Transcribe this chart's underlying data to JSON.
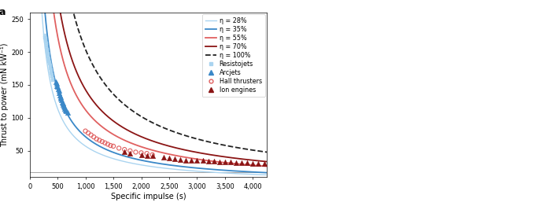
{
  "xlabel": "Specific impulse (s)",
  "ylabel": "Thrust to power (mN kW⁻¹)",
  "xlim": [
    0,
    4250
  ],
  "ylim": [
    10,
    260
  ],
  "curves": [
    {
      "eta": 0.28,
      "label": "η = 28%",
      "color": "#aad4f0",
      "linestyle": "solid",
      "linewidth": 1.0
    },
    {
      "eta": 0.35,
      "label": "η = 35%",
      "color": "#3a88c8",
      "linestyle": "solid",
      "linewidth": 1.3
    },
    {
      "eta": 0.55,
      "label": "η = 55%",
      "color": "#e06060",
      "linestyle": "solid",
      "linewidth": 1.3
    },
    {
      "eta": 0.7,
      "label": "η = 70%",
      "color": "#8b1515",
      "linestyle": "solid",
      "linewidth": 1.3
    },
    {
      "eta": 1.0,
      "label": "η = 100%",
      "color": "#222222",
      "linestyle": "dashed",
      "linewidth": 1.3
    }
  ],
  "resistojets": {
    "isp": [
      270,
      275,
      280,
      285,
      290,
      295,
      300,
      305,
      310,
      315,
      320,
      325,
      330,
      335,
      340,
      345,
      350,
      355,
      360,
      365,
      370,
      375,
      380,
      385,
      390,
      395,
      400,
      410,
      420
    ],
    "tp": [
      225,
      222,
      220,
      218,
      215,
      213,
      210,
      207,
      204,
      202,
      200,
      198,
      196,
      193,
      190,
      188,
      186,
      184,
      182,
      180,
      177,
      175,
      172,
      170,
      168,
      165,
      163,
      160,
      157
    ],
    "color": "#aad4f0",
    "marker": "s",
    "label": "Resistojets",
    "size": 12,
    "filled": true
  },
  "arcjets": {
    "isp": [
      470,
      480,
      490,
      500,
      510,
      520,
      530,
      540,
      550,
      560,
      570,
      580,
      590,
      600,
      610,
      620,
      630,
      640,
      660,
      680
    ],
    "tp": [
      155,
      152,
      149,
      147,
      144,
      141,
      138,
      135,
      132,
      130,
      127,
      124,
      122,
      120,
      118,
      116,
      114,
      112,
      110,
      108
    ],
    "color": "#3a88c8",
    "marker": "^",
    "label": "Arcjets",
    "size": 22,
    "filled": true
  },
  "hall_thrusters": {
    "isp": [
      1000,
      1050,
      1100,
      1150,
      1200,
      1250,
      1300,
      1350,
      1400,
      1450,
      1500,
      1600,
      1700,
      1800,
      1900,
      2000,
      2100,
      2200
    ],
    "tp": [
      80,
      77,
      74,
      71,
      68,
      66,
      64,
      62,
      60,
      58,
      57,
      54,
      52,
      50,
      48,
      47,
      46,
      44
    ],
    "color": "#e06060",
    "marker": "o",
    "label": "Hall thrusters",
    "size": 14,
    "filled": false
  },
  "ion_engines": {
    "isp": [
      1700,
      1800,
      2000,
      2100,
      2200,
      2400,
      2500,
      2600,
      2700,
      2800,
      2900,
      3000,
      3100,
      3200,
      3300,
      3400,
      3500,
      3600,
      3700,
      3800,
      3900,
      4000,
      4100,
      4200
    ],
    "tp": [
      48,
      46,
      44,
      43,
      42,
      40,
      39,
      38,
      37,
      36,
      36,
      35,
      35,
      34,
      34,
      33,
      33,
      33,
      32,
      32,
      32,
      31,
      31,
      31
    ],
    "color": "#8b1515",
    "marker": "^",
    "label": "Ion engines",
    "size": 22,
    "filled": true
  },
  "hline_y": 18,
  "g0": 9.80665,
  "background_color": "#ffffff",
  "panel_label": "a",
  "legend_fontsize": 5.8,
  "axis_fontsize": 7.0,
  "tick_fontsize": 6.0
}
